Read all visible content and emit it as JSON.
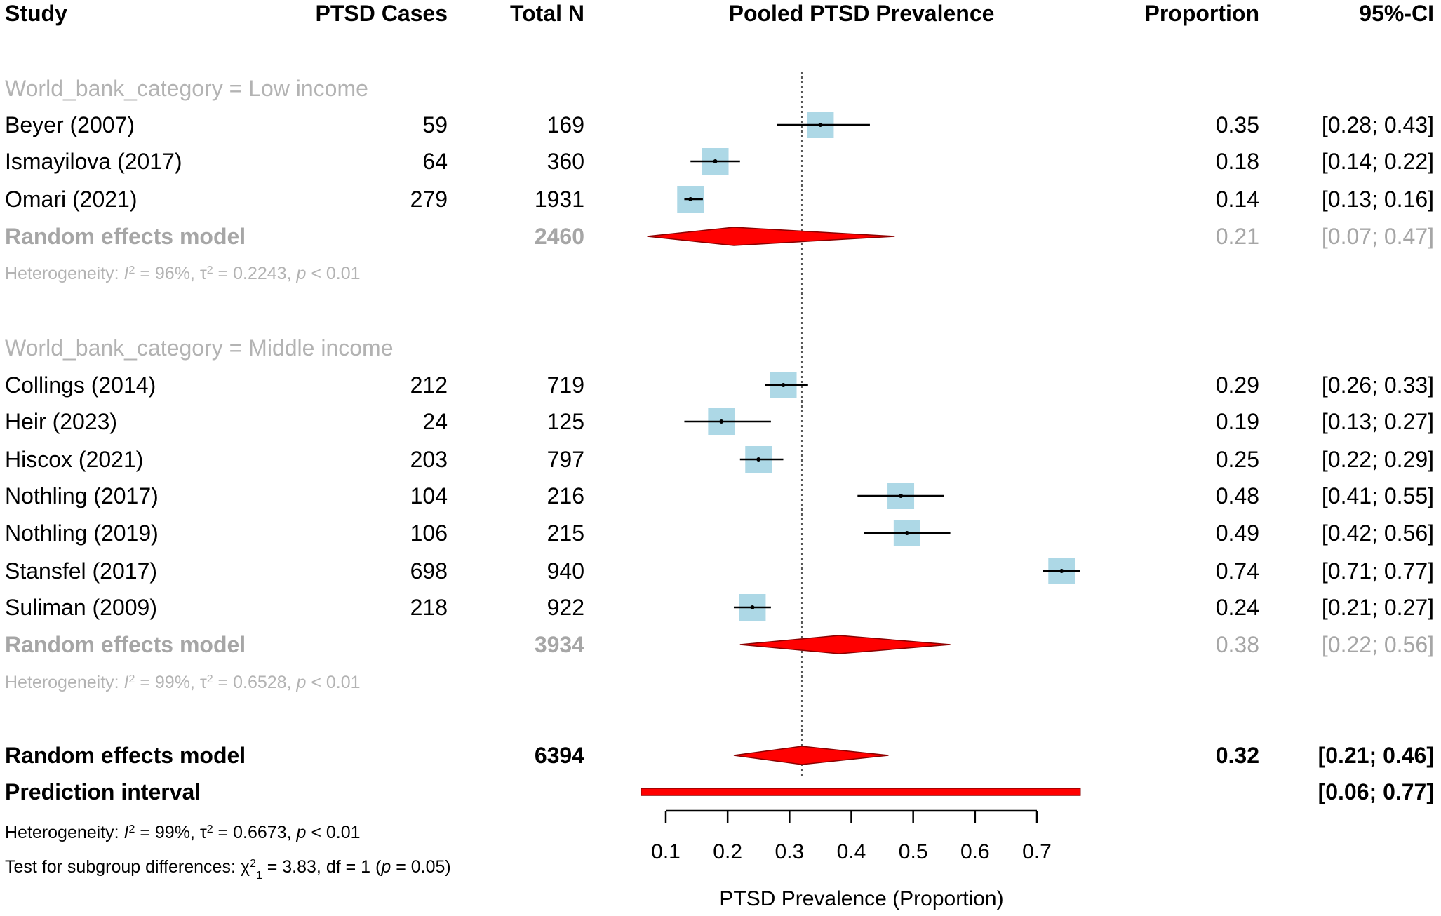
{
  "chart_data": {
    "type": "forest",
    "title": "Pooled PTSD Prevalence",
    "xlabel": "PTSD Prevalence (Proportion)",
    "xlim": [
      0.1,
      0.7
    ],
    "ticks": [
      0.1,
      0.2,
      0.3,
      0.4,
      0.5,
      0.6,
      0.7
    ],
    "tick_labels": [
      "0.1",
      "0.2",
      "0.3",
      "0.4",
      "0.5",
      "0.6",
      "0.7"
    ],
    "reference_line": 0.32,
    "columns": {
      "study": "Study",
      "cases": "PTSD Cases",
      "total": "Total N",
      "plot": "Pooled PTSD Prevalence",
      "proportion": "Proportion",
      "ci": "95%-CI"
    },
    "groups": [
      {
        "label": "World_bank_category = Low income",
        "studies": [
          {
            "name": "Beyer (2007)",
            "cases": "59",
            "total": "169",
            "est": 0.35,
            "lo": 0.28,
            "hi": 0.43,
            "prop": "0.35",
            "ci": "[0.28; 0.43]"
          },
          {
            "name": "Ismayilova (2017)",
            "cases": "64",
            "total": "360",
            "est": 0.18,
            "lo": 0.14,
            "hi": 0.22,
            "prop": "0.18",
            "ci": "[0.14; 0.22]"
          },
          {
            "name": "Omari (2021)",
            "cases": "279",
            "total": "1931",
            "est": 0.14,
            "lo": 0.13,
            "hi": 0.16,
            "prop": "0.14",
            "ci": "[0.13; 0.16]"
          }
        ],
        "pooled": {
          "label": "Random effects model",
          "total": "2460",
          "est": 0.21,
          "lo": 0.07,
          "hi": 0.47,
          "prop": "0.21",
          "ci": "[0.07; 0.47]"
        },
        "heterogeneity": {
          "prefix": "Heterogeneity: ",
          "i2": "96%",
          "tau2": "0.2243",
          "p": "0.01"
        }
      },
      {
        "label": "World_bank_category = Middle income",
        "studies": [
          {
            "name": "Collings (2014)",
            "cases": "212",
            "total": "719",
            "est": 0.29,
            "lo": 0.26,
            "hi": 0.33,
            "prop": "0.29",
            "ci": "[0.26; 0.33]"
          },
          {
            "name": "Heir (2023)",
            "cases": "24",
            "total": "125",
            "est": 0.19,
            "lo": 0.13,
            "hi": 0.27,
            "prop": "0.19",
            "ci": "[0.13; 0.27]"
          },
          {
            "name": "Hiscox (2021)",
            "cases": "203",
            "total": "797",
            "est": 0.25,
            "lo": 0.22,
            "hi": 0.29,
            "prop": "0.25",
            "ci": "[0.22; 0.29]"
          },
          {
            "name": "Nothling (2017)",
            "cases": "104",
            "total": "216",
            "est": 0.48,
            "lo": 0.41,
            "hi": 0.55,
            "prop": "0.48",
            "ci": "[0.41; 0.55]"
          },
          {
            "name": "Nothling (2019)",
            "cases": "106",
            "total": "215",
            "est": 0.49,
            "lo": 0.42,
            "hi": 0.56,
            "prop": "0.49",
            "ci": "[0.42; 0.56]"
          },
          {
            "name": "Stansfel (2017)",
            "cases": "698",
            "total": "940",
            "est": 0.74,
            "lo": 0.71,
            "hi": 0.77,
            "prop": "0.74",
            "ci": "[0.71; 0.77]"
          },
          {
            "name": "Suliman (2009)",
            "cases": "218",
            "total": "922",
            "est": 0.24,
            "lo": 0.21,
            "hi": 0.27,
            "prop": "0.24",
            "ci": "[0.21; 0.27]"
          }
        ],
        "pooled": {
          "label": "Random effects model",
          "total": "3934",
          "est": 0.38,
          "lo": 0.22,
          "hi": 0.56,
          "prop": "0.38",
          "ci": "[0.22; 0.56]"
        },
        "heterogeneity": {
          "prefix": "Heterogeneity: ",
          "i2": "99%",
          "tau2": "0.6528",
          "p": "0.01"
        }
      }
    ],
    "overall": {
      "label": "Random effects model",
      "total": "6394",
      "est": 0.32,
      "lo": 0.21,
      "hi": 0.46,
      "prop": "0.32",
      "ci": "[0.21; 0.46]"
    },
    "prediction": {
      "label": "Prediction interval",
      "lo": 0.06,
      "hi": 0.77,
      "ci": "[0.06; 0.77]"
    },
    "overall_heterogeneity": {
      "prefix": "Heterogeneity: ",
      "i2": "99%",
      "tau2": "0.6673",
      "p": "0.01"
    },
    "subgroup_test": {
      "prefix": "Test for subgroup differences: ",
      "chi2": "3.83",
      "df": "1",
      "p": "0.05"
    }
  },
  "colors": {
    "box": "#add8e6",
    "diamond": "#ff0000",
    "diamond_outline": "#8b0000",
    "subgroup_text": "#b3b3b3",
    "line": "#000000"
  }
}
